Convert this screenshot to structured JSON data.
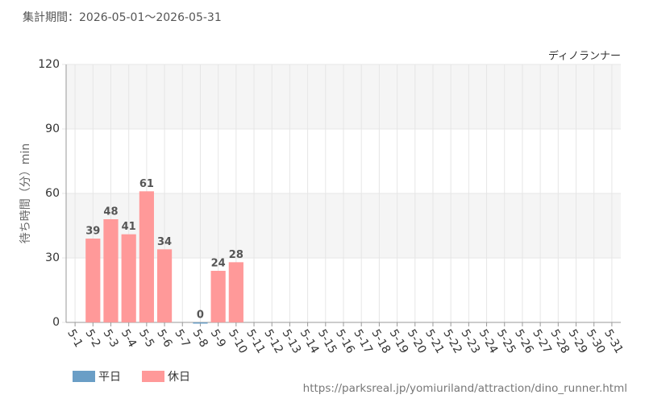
{
  "chart_data": {
    "type": "bar",
    "title": "集計期間：2026-05-01～2026-05-31",
    "subtitle": "ディノランナー",
    "y_label": "待ち時間（分）min",
    "source": "https://parksreal.jp/yomiuriland/attraction/dino_runner.html",
    "categories": [
      "5-1",
      "5-2",
      "5-3",
      "5-4",
      "5-5",
      "5-6",
      "5-7",
      "5-8",
      "5-9",
      "5-10",
      "5-11",
      "5-12",
      "5-13",
      "5-14",
      "5-15",
      "5-16",
      "5-17",
      "5-18",
      "5-19",
      "5-20",
      "5-21",
      "5-22",
      "5-23",
      "5-24",
      "5-25",
      "5-26",
      "5-27",
      "5-28",
      "5-29",
      "5-30",
      "5-31"
    ],
    "category_label_colors": [
      "#444",
      "#f08080",
      "#f08080",
      "#f08080",
      "#f08080",
      "#f08080",
      "#444",
      "#444",
      "#f08080",
      "#f08080",
      "#444",
      "#444",
      "#444",
      "#444",
      "#444",
      "#f08080",
      "#f08080",
      "#444",
      "#444",
      "#444",
      "#444",
      "#444",
      "#f08080",
      "#f08080",
      "#444",
      "#444",
      "#444",
      "#444",
      "#444",
      "#f08080",
      "#f08080"
    ],
    "series": [
      {
        "name": "平日",
        "color": "#6a9ec6",
        "label_color": "#5a8fb8",
        "values": [
          null,
          null,
          null,
          null,
          null,
          null,
          null,
          0,
          null,
          null,
          null,
          null,
          null,
          null,
          null,
          null,
          null,
          null,
          null,
          null,
          null,
          null,
          null,
          null,
          null,
          null,
          null,
          null,
          null,
          null,
          null
        ]
      },
      {
        "name": "休日",
        "color": "#ff9999",
        "label_color": "#f07878",
        "values": [
          null,
          39,
          48,
          41,
          61,
          34,
          null,
          null,
          24,
          28,
          null,
          null,
          null,
          null,
          null,
          null,
          null,
          null,
          null,
          null,
          null,
          null,
          null,
          null,
          null,
          null,
          null,
          null,
          null,
          null,
          null
        ]
      }
    ],
    "ylim": [
      0,
      120
    ],
    "yticks": [
      0,
      30,
      60,
      90,
      120
    ],
    "grid": true
  }
}
